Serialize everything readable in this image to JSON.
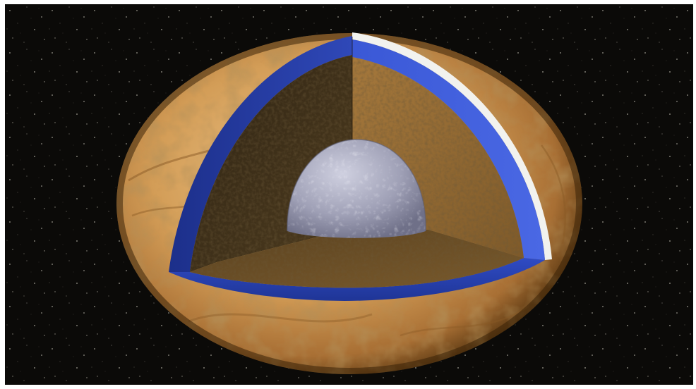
{
  "image": {
    "subject": "europa-interior-cutaway",
    "colors": {
      "space": "#0b0a08",
      "crust_light": "#e0b06a",
      "crust_mid": "#c48a44",
      "crust_dark": "#7a4f22",
      "ocean_blue": "#3a58d6",
      "ocean_dark": "#1c2f8a",
      "ice_surface": "#f2f2ee",
      "mantle_dark": "#3d2f1a",
      "mantle_brown": "#8a6432",
      "mantle_floor": "#6b5028",
      "core_gray": "#a8a8bc"
    }
  }
}
